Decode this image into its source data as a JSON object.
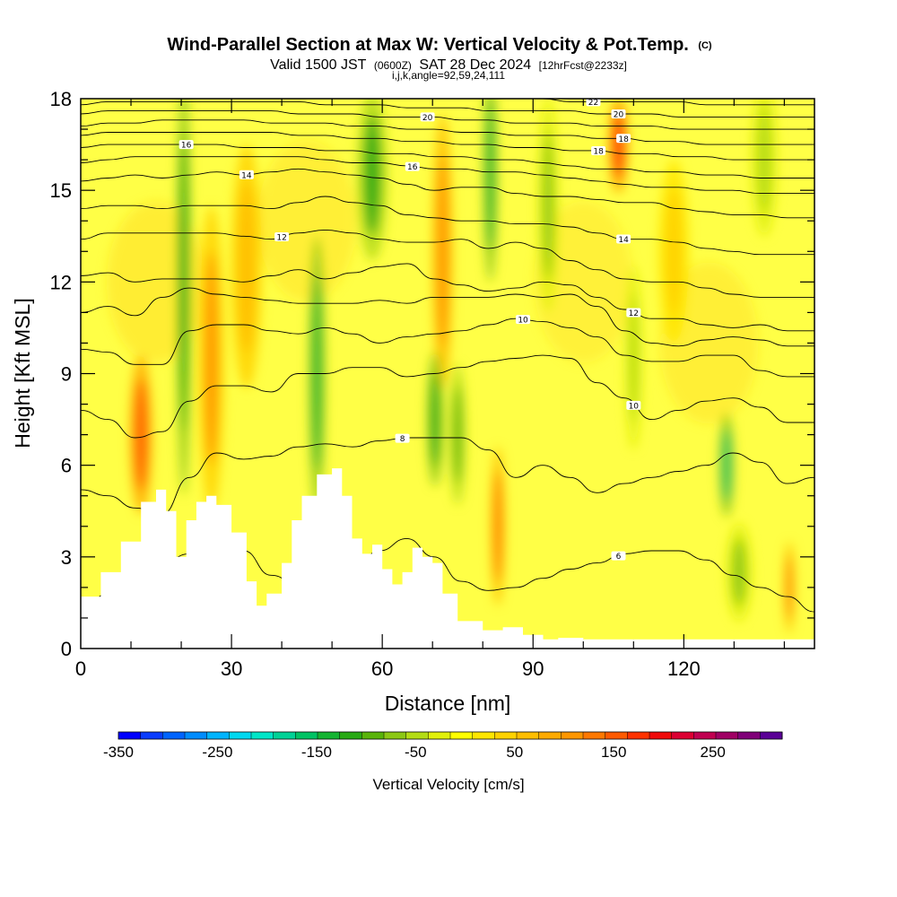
{
  "chart_data": {
    "type": "heatmap",
    "title": "Wind-Parallel Section at Max W: Vertical Velocity & Pot.Temp.",
    "title_mark": "(C)",
    "subtitle_parts": [
      "Valid 1500 JST",
      "(0600Z)",
      "SAT 28 Dec 2024",
      "[12hrFcst@2233z]"
    ],
    "subtitle2": "i,j,k,angle=92,59,24,111",
    "xlabel": "Distance [nm]",
    "ylabel": "Height [Kft MSL]",
    "xlim": [
      0,
      146
    ],
    "ylim": [
      0,
      18
    ],
    "x_ticks": [
      0,
      30,
      60,
      90,
      120
    ],
    "y_ticks": [
      0,
      3,
      6,
      9,
      12,
      15,
      18
    ],
    "grid": false,
    "colorbar": {
      "label": "Vertical Velocity [cm/s]",
      "range": [
        -350,
        320
      ],
      "step": 20,
      "tick_values": [
        -350,
        -250,
        -150,
        -50,
        50,
        150,
        250
      ],
      "colors": [
        "#0000ff",
        "#0a3cff",
        "#0064ff",
        "#008cff",
        "#00b4ff",
        "#00d8f0",
        "#00e6c8",
        "#00d296",
        "#00c364",
        "#14b432",
        "#28aa14",
        "#5ab40a",
        "#8cc814",
        "#b4dc14",
        "#e1f00a",
        "#ffff00",
        "#ffe600",
        "#ffd200",
        "#ffbe00",
        "#ffaa00",
        "#ff9600",
        "#ff7800",
        "#ff5a00",
        "#ff3200",
        "#f00a0a",
        "#dc0032",
        "#c00050",
        "#a00064",
        "#800078",
        "#5a0096"
      ]
    },
    "terrain_profile_kft": {
      "x": [
        0,
        4,
        8,
        12,
        15,
        17,
        19,
        21,
        23,
        25,
        27,
        30,
        33,
        35,
        37,
        40,
        42,
        44,
        47,
        50,
        52,
        54,
        56,
        58,
        60,
        62,
        64,
        66,
        68,
        70,
        72,
        75,
        80,
        84,
        88,
        92,
        95,
        100,
        110,
        120,
        130,
        140,
        146
      ],
      "y": [
        1.7,
        2.5,
        3.5,
        4.8,
        5.2,
        4.5,
        3.0,
        4.2,
        4.8,
        5.0,
        4.7,
        3.8,
        2.2,
        1.4,
        1.8,
        2.8,
        4.2,
        5.0,
        5.7,
        5.9,
        5.0,
        3.6,
        3.1,
        3.4,
        2.6,
        2.1,
        2.5,
        3.3,
        3.0,
        2.8,
        1.8,
        0.9,
        0.6,
        0.7,
        0.45,
        0.3,
        0.35,
        0.3,
        0.3,
        0.3,
        0.3,
        0.3,
        0.3
      ]
    },
    "vertical_velocity_features": [
      {
        "x": 12,
        "z_center": 7.0,
        "z_half": 2.6,
        "x_half": 2.2,
        "value": 160
      },
      {
        "x": 20.5,
        "z_center": 12.0,
        "z_half": 7.0,
        "x_half": 1.4,
        "value": -120
      },
      {
        "x": 26,
        "z_center": 9.5,
        "z_half": 5.0,
        "x_half": 2.5,
        "value": 100
      },
      {
        "x": 33,
        "z_center": 12.5,
        "z_half": 4.0,
        "x_half": 3.0,
        "value": 60
      },
      {
        "x": 47,
        "z_center": 9.0,
        "z_half": 4.5,
        "x_half": 1.6,
        "value": -130
      },
      {
        "x": 58,
        "z_center": 15.5,
        "z_half": 2.8,
        "x_half": 3.0,
        "value": -110
      },
      {
        "x": 72,
        "z_center": 13.0,
        "z_half": 4.5,
        "x_half": 2.0,
        "value": 110
      },
      {
        "x": 70.5,
        "z_center": 7.5,
        "z_half": 2.2,
        "x_half": 1.6,
        "value": -120
      },
      {
        "x": 75,
        "z_center": 7.0,
        "z_half": 2.3,
        "x_half": 1.5,
        "value": -100
      },
      {
        "x": 81.5,
        "z_center": 15.5,
        "z_half": 3.5,
        "x_half": 1.4,
        "value": -130
      },
      {
        "x": 83,
        "z_center": 4.0,
        "z_half": 2.6,
        "x_half": 1.4,
        "value": 140
      },
      {
        "x": 93,
        "z_center": 14.5,
        "z_half": 3.5,
        "x_half": 2.0,
        "value": -60
      },
      {
        "x": 107,
        "z_center": 16.5,
        "z_half": 1.6,
        "x_half": 2.0,
        "value": 170
      },
      {
        "x": 110,
        "z_center": 9.5,
        "z_half": 3.0,
        "x_half": 1.6,
        "value": -50
      },
      {
        "x": 128.5,
        "z_center": 6.0,
        "z_half": 1.7,
        "x_half": 1.5,
        "value": -150
      },
      {
        "x": 131,
        "z_center": 2.5,
        "z_half": 1.6,
        "x_half": 2.5,
        "value": -60
      },
      {
        "x": 141,
        "z_center": 2.0,
        "z_half": 1.5,
        "x_half": 1.0,
        "value": 120
      },
      {
        "x": 136,
        "z_center": 16.0,
        "z_half": 2.5,
        "x_half": 2.5,
        "value": -40
      },
      {
        "x": 118,
        "z_center": 13.0,
        "z_half": 3.0,
        "x_half": 3.0,
        "value": 40
      }
    ],
    "potential_temperature_contours": [
      {
        "label": "6",
        "label_x": 107,
        "y": [
          1.2,
          1.8,
          2.3,
          2.8,
          3.1,
          3.5,
          3.2,
          2.4,
          2.1,
          2.2,
          2.6,
          3.2,
          3.6,
          3.0,
          2.2,
          1.9,
          2.0,
          2.3,
          2.6,
          2.8,
          3.1,
          3.2,
          3.2,
          2.9,
          2.4,
          2.0,
          1.7,
          1.2
        ]
      },
      {
        "label": "8",
        "label_x": 64,
        "y": [
          5.2,
          5.0,
          4.6,
          4.4,
          5.6,
          6.4,
          6.2,
          6.3,
          6.6,
          6.7,
          6.6,
          6.8,
          6.9,
          6.9,
          6.9,
          6.5,
          5.6,
          6.0,
          5.6,
          5.1,
          5.4,
          5.6,
          5.8,
          6.0,
          6.4,
          6.1,
          5.4,
          5.6
        ]
      },
      {
        "label": "10",
        "label_x": 110,
        "y": [
          7.8,
          7.5,
          6.9,
          7.1,
          8.1,
          8.6,
          8.6,
          8.4,
          9.0,
          9.0,
          9.2,
          9.2,
          8.9,
          9.0,
          9.2,
          9.4,
          9.5,
          9.6,
          9.5,
          8.7,
          8.2,
          7.5,
          7.8,
          8.1,
          8.2,
          7.9,
          7.4,
          7.4
        ]
      },
      {
        "label": "10",
        "label_x": 88,
        "y": [
          9.8,
          9.7,
          9.3,
          9.3,
          10.4,
          10.6,
          10.6,
          10.4,
          10.3,
          10.5,
          10.3,
          10.0,
          10.2,
          10.3,
          10.4,
          10.6,
          10.8,
          10.7,
          10.5,
          10.2,
          9.6,
          9.4,
          9.4,
          9.6,
          9.6,
          9.1,
          8.9,
          8.9
        ]
      },
      {
        "label": "",
        "label_x": 0,
        "y": [
          11.0,
          11.2,
          10.9,
          11.5,
          11.8,
          11.6,
          11.5,
          11.4,
          11.3,
          11.3,
          11.3,
          11.4,
          11.3,
          11.5,
          11.5,
          11.5,
          11.6,
          11.5,
          11.6,
          11.2,
          10.4,
          10.0,
          9.9,
          10.1,
          10.2,
          10.1,
          9.9,
          9.9
        ]
      },
      {
        "label": "12",
        "label_x": 110,
        "y": [
          12.2,
          12.3,
          12.0,
          12.1,
          12.1,
          12.1,
          12.0,
          12.2,
          12.4,
          12.1,
          12.3,
          12.5,
          12.6,
          12.1,
          11.9,
          11.7,
          11.8,
          12.0,
          11.9,
          11.5,
          11.1,
          10.8,
          10.8,
          10.6,
          10.5,
          10.6,
          10.4,
          10.4
        ]
      },
      {
        "label": "12",
        "label_x": 40,
        "y": [
          13.4,
          13.6,
          13.6,
          13.6,
          13.6,
          13.6,
          13.5,
          13.4,
          13.6,
          13.7,
          13.6,
          13.4,
          13.3,
          13.3,
          13.4,
          13.1,
          13.3,
          13.1,
          12.7,
          12.4,
          12.1,
          12.0,
          12.0,
          11.8,
          11.6,
          11.5,
          11.5,
          11.5
        ]
      },
      {
        "label": "14",
        "label_x": 108,
        "y": [
          14.4,
          14.5,
          14.5,
          14.4,
          14.5,
          14.5,
          14.5,
          14.4,
          14.6,
          14.8,
          14.6,
          14.5,
          14.2,
          14.1,
          14.0,
          14.0,
          13.9,
          13.9,
          13.8,
          13.6,
          13.4,
          13.4,
          13.3,
          13.1,
          13.0,
          12.9,
          12.9,
          12.9
        ]
      },
      {
        "label": "14",
        "label_x": 33,
        "y": [
          15.3,
          15.4,
          15.5,
          15.4,
          15.5,
          15.6,
          15.5,
          15.6,
          15.7,
          15.6,
          15.5,
          15.4,
          15.2,
          15.0,
          15.1,
          15.1,
          14.9,
          14.8,
          14.8,
          14.7,
          14.6,
          14.6,
          14.4,
          14.3,
          14.2,
          14.2,
          14.1,
          14.1
        ]
      },
      {
        "label": "16",
        "label_x": 66,
        "y": [
          15.9,
          16.0,
          16.1,
          16.1,
          16.1,
          16.1,
          16.1,
          16.1,
          16.1,
          16.0,
          15.9,
          15.9,
          15.8,
          15.7,
          15.7,
          15.6,
          15.6,
          15.5,
          15.4,
          15.3,
          15.2,
          15.1,
          15.1,
          15.0,
          15.0,
          14.9,
          14.9,
          14.9
        ]
      },
      {
        "label": "16",
        "label_x": 21,
        "y": [
          16.4,
          16.5,
          16.5,
          16.5,
          16.5,
          16.5,
          16.4,
          16.4,
          16.4,
          16.3,
          16.3,
          16.2,
          16.2,
          16.1,
          16.1,
          16.0,
          16.0,
          15.9,
          15.8,
          15.7,
          15.7,
          15.6,
          15.6,
          15.5,
          15.5,
          15.4,
          15.4,
          15.4
        ]
      },
      {
        "label": "18",
        "label_x": 103,
        "y": [
          16.8,
          16.9,
          16.9,
          16.9,
          16.9,
          16.9,
          16.9,
          16.9,
          16.8,
          16.8,
          16.7,
          16.7,
          16.6,
          16.6,
          16.5,
          16.5,
          16.4,
          16.4,
          16.3,
          16.3,
          16.2,
          16.2,
          16.1,
          16.1,
          16.0,
          16.0,
          16.0,
          16.0
        ]
      },
      {
        "label": "18",
        "label_x": 108,
        "y": [
          17.1,
          17.2,
          17.2,
          17.3,
          17.3,
          17.3,
          17.3,
          17.2,
          17.2,
          17.2,
          17.1,
          17.1,
          17.0,
          17.0,
          16.9,
          16.9,
          16.8,
          16.8,
          16.8,
          16.7,
          16.7,
          16.6,
          16.6,
          16.5,
          16.5,
          16.5,
          16.5,
          16.5
        ]
      },
      {
        "label": "20",
        "label_x": 69,
        "y": [
          17.5,
          17.6,
          17.6,
          17.6,
          17.6,
          17.6,
          17.6,
          17.6,
          17.5,
          17.5,
          17.5,
          17.4,
          17.4,
          17.4,
          17.3,
          17.3,
          17.2,
          17.2,
          17.2,
          17.1,
          17.1,
          17.1,
          17.0,
          17.0,
          17.0,
          17.0,
          17.0,
          17.0
        ]
      },
      {
        "label": "20",
        "label_x": 107,
        "y": [
          17.8,
          17.9,
          17.9,
          17.9,
          17.9,
          17.9,
          17.9,
          17.9,
          17.9,
          17.8,
          17.8,
          17.8,
          17.7,
          17.7,
          17.7,
          17.6,
          17.6,
          17.6,
          17.6,
          17.5,
          17.5,
          17.5,
          17.4,
          17.4,
          17.4,
          17.4,
          17.4,
          17.4
        ]
      },
      {
        "label": "22",
        "label_x": 102,
        "y": [
          18.1,
          18.2,
          18.2,
          18.2,
          18.2,
          18.2,
          18.2,
          18.2,
          18.2,
          18.1,
          18.1,
          18.1,
          18.1,
          18.1,
          18.0,
          18.0,
          18.0,
          18.0,
          17.9,
          17.9,
          17.9,
          17.9,
          17.9,
          17.8,
          17.8,
          17.8,
          17.8,
          17.8
        ]
      }
    ]
  }
}
